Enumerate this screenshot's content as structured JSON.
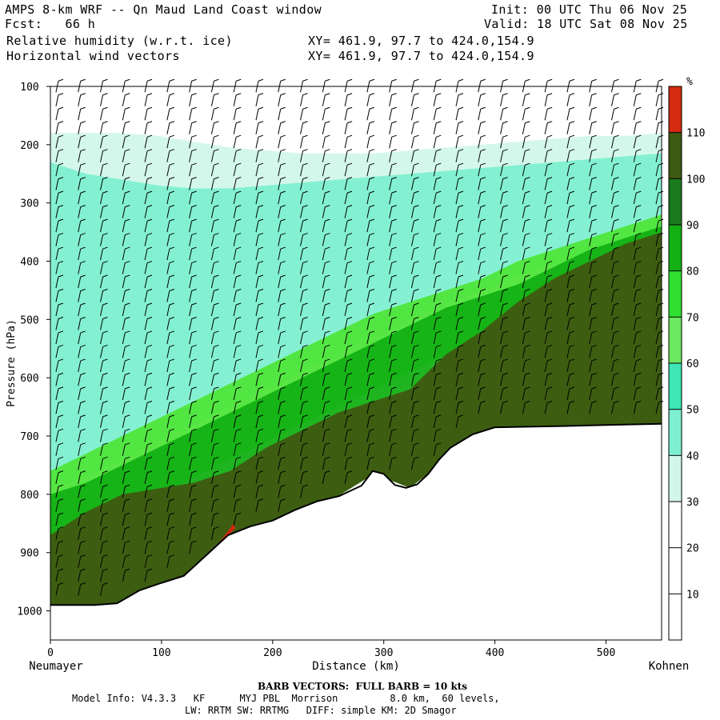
{
  "header": {
    "title": "AMPS 8-km WRF -- Qn Maud Land Coast window",
    "forecast": "Fcst:   66 h",
    "field1": "Relative humidity (w.r.t. ice)",
    "field2": "Horizontal wind vectors",
    "init": "Init: 00 UTC Thu 06 Nov 25",
    "valid": "Valid: 18 UTC Sat 08 Nov 25",
    "xy1": "XY= 461.9, 97.7 to 424.0,154.9",
    "xy2": "XY= 461.9, 97.7 to 424.0,154.9"
  },
  "chart_data": {
    "type": "heatmap",
    "title": "Relative humidity (w.r.t. ice) cross-section with horizontal wind barbs",
    "xlabel": "Distance (km)",
    "ylabel": "Pressure (hPa)",
    "xlim": [
      0,
      550
    ],
    "ylim": [
      1050,
      100
    ],
    "x_ticks": [
      "0",
      "100",
      "200",
      "300",
      "400",
      "500"
    ],
    "y_ticks": [
      "100",
      "200",
      "300",
      "400",
      "500",
      "600",
      "700",
      "800",
      "900",
      "1000"
    ],
    "left_endpoint": "Neumayer",
    "right_endpoint": "Kohnen",
    "colorbar": {
      "unit": "%",
      "levels": [
        "10",
        "20",
        "30",
        "40",
        "50",
        "60",
        "70",
        "80",
        "90",
        "100",
        "110"
      ],
      "colors": [
        "#ffffff",
        "#ffffff",
        "#ffffff",
        "#d2f7ea",
        "#7ef0d0",
        "#3fe6b6",
        "#6ee860",
        "#2fe030",
        "#13b114",
        "#1a7a1d",
        "#3f5a11",
        "#d42a10"
      ]
    },
    "terrain_surface_hpa": {
      "x_km": [
        0,
        20,
        40,
        60,
        80,
        100,
        120,
        140,
        160,
        180,
        200,
        220,
        240,
        260,
        280,
        290,
        300,
        310,
        320,
        330,
        340,
        350,
        360,
        380,
        400,
        430,
        460,
        500,
        550
      ],
      "p_hpa": [
        990,
        990,
        990,
        987,
        965,
        952,
        940,
        905,
        870,
        855,
        845,
        827,
        812,
        803,
        785,
        760,
        765,
        784,
        789,
        783,
        765,
        740,
        720,
        697,
        685,
        684,
        683,
        681,
        679
      ]
    },
    "rh_layers": [
      {
        "label": "30-40",
        "top_hpa": [
          180,
          180,
          180,
          185,
          195,
          205,
          210,
          215,
          215,
          215,
          210,
          205,
          200,
          195,
          190,
          185,
          185,
          180
        ],
        "bottom_hpa": [
          760,
          740,
          700,
          660,
          620,
          590,
          560,
          530,
          500,
          470,
          440,
          410,
          390,
          370,
          350,
          330,
          310,
          295
        ]
      },
      {
        "label": "40-50",
        "top_hpa": [
          230,
          250,
          260,
          270,
          275,
          275,
          270,
          265,
          260,
          255,
          250,
          245,
          240,
          235,
          230,
          225,
          220,
          215
        ],
        "bottom_hpa": [
          790,
          770,
          740,
          710,
          680,
          650,
          620,
          590,
          560,
          530,
          500,
          475,
          450,
          425,
          405,
          385,
          365,
          345
        ]
      },
      {
        "label": "60-70",
        "top_hpa": [
          760,
          730,
          700,
          670,
          640,
          610,
          580,
          550,
          520,
          490,
          470,
          450,
          430,
          400,
          380,
          360,
          340,
          320
        ],
        "bottom_hpa": [
          880,
          860,
          830,
          800,
          770,
          740,
          710,
          680,
          650,
          620,
          590,
          560,
          530,
          500,
          470,
          440,
          410,
          380
        ]
      },
      {
        "label": "80-90",
        "top_hpa": [
          800,
          780,
          750,
          720,
          690,
          660,
          630,
          600,
          570,
          540,
          510,
          480,
          460,
          440,
          410,
          380,
          360,
          340
        ],
        "bottom_hpa": [
          990,
          990,
          987,
          965,
          940,
          905,
          855,
          827,
          803,
          765,
          789,
          740,
          697,
          685,
          684,
          683,
          681,
          679
        ]
      },
      {
        "label": "90-100",
        "top_hpa": [
          870,
          830,
          800,
          790,
          780,
          760,
          720,
          690,
          660,
          640,
          620,
          560,
          520,
          470,
          430,
          400,
          370,
          350
        ],
        "bottom_hpa": [
          990,
          990,
          987,
          965,
          940,
          905,
          855,
          827,
          803,
          765,
          789,
          740,
          697,
          685,
          684,
          683,
          681,
          679
        ]
      },
      {
        "label": "110+",
        "x_km": [
          145,
          165
        ],
        "p_hpa": [
          850,
          900
        ]
      }
    ],
    "annotation": "BARB VECTORS:  FULL BARB = 10 kts"
  },
  "footer": {
    "barb_note": "BARB VECTORS:  FULL BARB = 10 kts",
    "model_line1": "Model Info: V4.3.3   KF      MYJ PBL  Morrison         8.0 km,  60 levels,",
    "model_line2": "LW: RRTM SW: RRTMG   DIFF: simple KM: 2D Smagor"
  },
  "colors": {
    "axis": "#000000",
    "terrain": "#ffffff"
  }
}
